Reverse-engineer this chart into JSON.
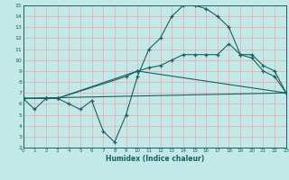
{
  "xlabel": "Humidex (Indice chaleur)",
  "xlim": [
    0,
    23
  ],
  "ylim": [
    2,
    15
  ],
  "xticks": [
    0,
    1,
    2,
    3,
    4,
    5,
    6,
    7,
    8,
    9,
    10,
    11,
    12,
    13,
    14,
    15,
    16,
    17,
    18,
    19,
    20,
    21,
    22,
    23
  ],
  "yticks": [
    2,
    3,
    4,
    5,
    6,
    7,
    8,
    9,
    10,
    11,
    12,
    13,
    14,
    15
  ],
  "bg_color": "#c2e8e8",
  "grid_color": "#e8b0b0",
  "line_color": "#1a6060",
  "line1_x": [
    0,
    1,
    2,
    3,
    4,
    5,
    6,
    7,
    8,
    9,
    10,
    11,
    12,
    13,
    14,
    15,
    16,
    17,
    18,
    19,
    20,
    21,
    22,
    23
  ],
  "line1_y": [
    6.5,
    5.5,
    6.5,
    6.5,
    6.0,
    5.5,
    6.3,
    3.5,
    2.5,
    5.0,
    8.5,
    11.0,
    12.0,
    14.0,
    15.0,
    15.0,
    14.7,
    14.0,
    13.0,
    10.5,
    10.2,
    9.0,
    8.5,
    7.0
  ],
  "line2_x": [
    0,
    23
  ],
  "line2_y": [
    6.5,
    7.0
  ],
  "line3_x": [
    0,
    2,
    3,
    10,
    11,
    12,
    13,
    14,
    15,
    16,
    17,
    18,
    19,
    20,
    21,
    22,
    23
  ],
  "line3_y": [
    6.5,
    6.5,
    6.5,
    9.0,
    9.3,
    9.5,
    10.0,
    10.5,
    10.5,
    10.5,
    10.5,
    11.5,
    10.5,
    10.5,
    9.5,
    9.0,
    7.0
  ],
  "line4_x": [
    0,
    2,
    3,
    9,
    10,
    23
  ],
  "line4_y": [
    6.5,
    6.5,
    6.5,
    8.5,
    9.0,
    7.0
  ]
}
